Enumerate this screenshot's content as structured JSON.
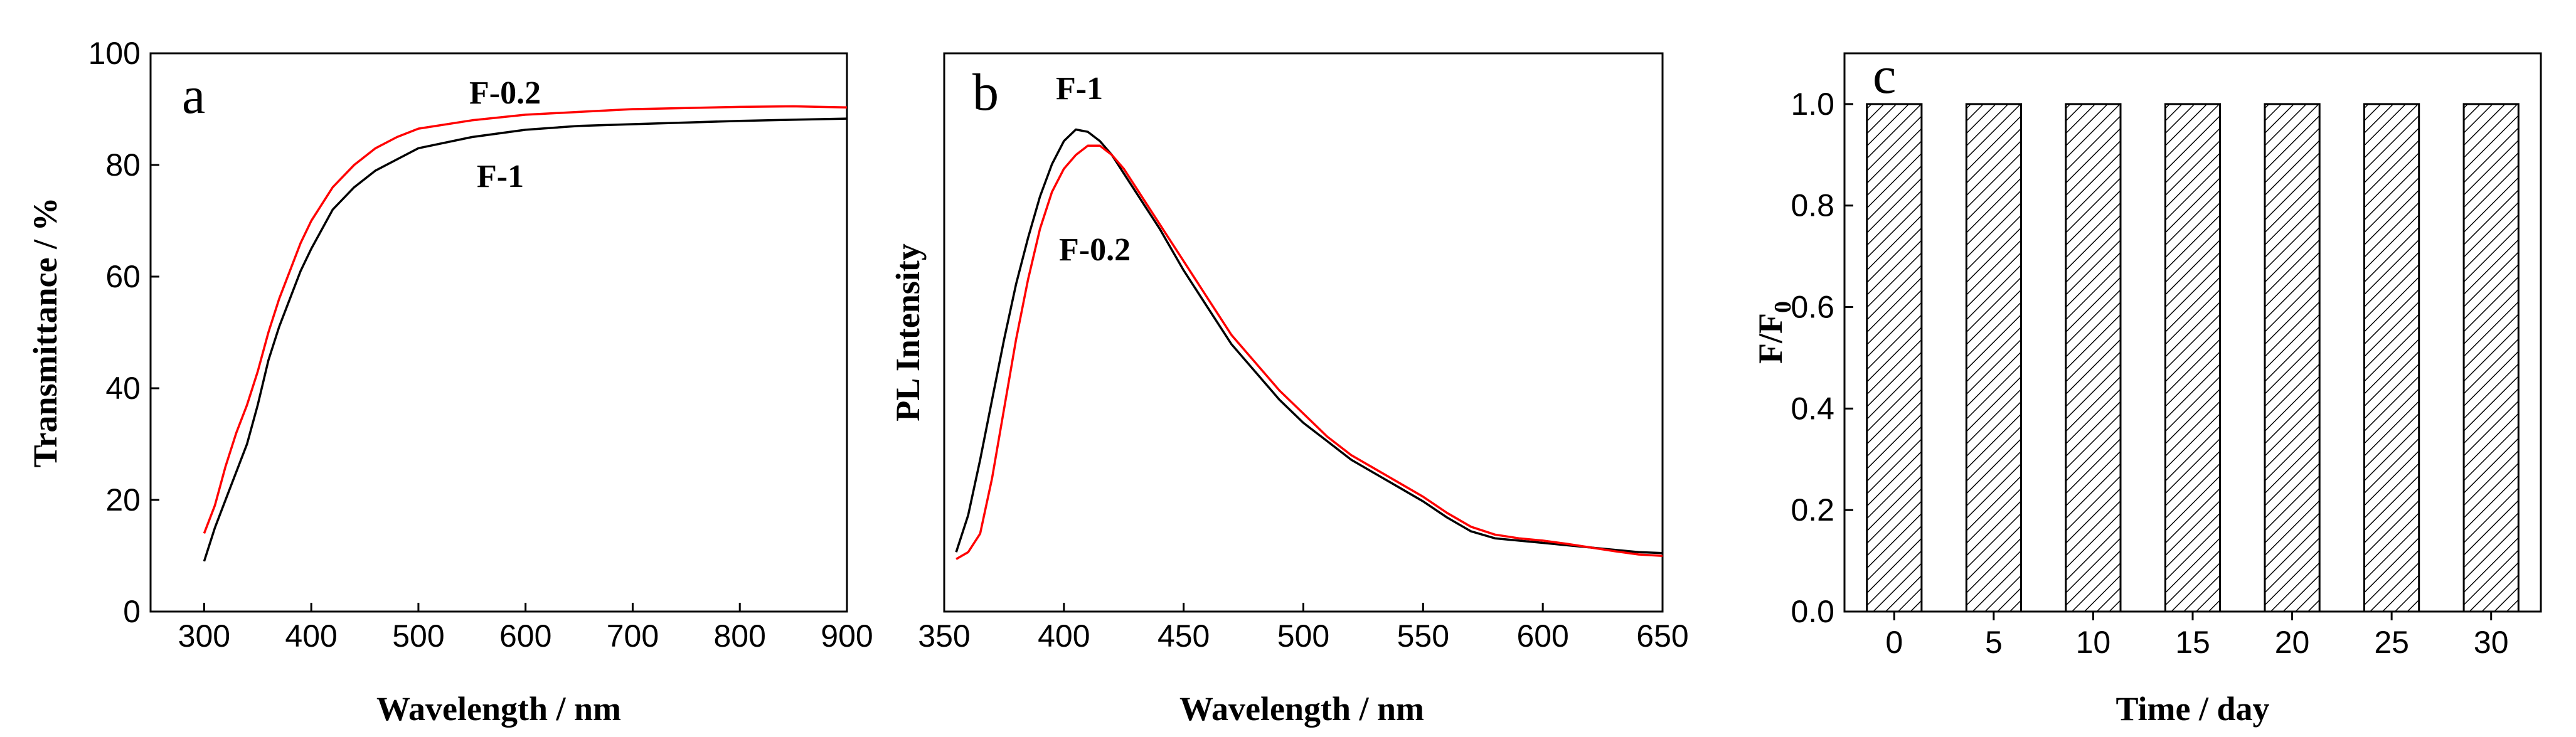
{
  "chart_data": [
    {
      "panel": "a",
      "type": "line",
      "title": "",
      "xlabel": "Wavelength / nm",
      "ylabel": "Transmittance / %",
      "xlim": [
        250,
        900
      ],
      "ylim": [
        0,
        100
      ],
      "xticks": [
        300,
        400,
        500,
        600,
        700,
        800,
        900
      ],
      "yticks": [
        0,
        20,
        40,
        60,
        80,
        100
      ],
      "series": [
        {
          "name": "F-0.2",
          "color": "#ff0000",
          "x": [
            300,
            310,
            320,
            330,
            340,
            350,
            360,
            370,
            380,
            390,
            400,
            420,
            440,
            460,
            480,
            500,
            550,
            600,
            650,
            700,
            750,
            800,
            850,
            900
          ],
          "y": [
            14,
            19,
            26,
            32,
            37,
            43,
            50,
            56,
            61,
            66,
            70,
            76,
            80,
            83,
            85,
            86.5,
            88,
            89,
            89.5,
            90,
            90.2,
            90.4,
            90.5,
            90.3
          ]
        },
        {
          "name": "F-1",
          "color": "#000000",
          "x": [
            300,
            310,
            320,
            330,
            340,
            350,
            360,
            370,
            380,
            390,
            400,
            420,
            440,
            460,
            480,
            500,
            550,
            600,
            650,
            700,
            750,
            800,
            850,
            900
          ],
          "y": [
            9,
            15,
            20,
            25,
            30,
            37,
            45,
            51,
            56,
            61,
            65,
            72,
            76,
            79,
            81,
            83,
            85,
            86.3,
            87,
            87.3,
            87.6,
            87.9,
            88.1,
            88.3
          ]
        }
      ],
      "annotations": [
        "F-0.2",
        "F-1"
      ]
    },
    {
      "panel": "b",
      "type": "line",
      "title": "",
      "xlabel": "Wavelength / nm",
      "ylabel": "PL Intensity",
      "xlim": [
        350,
        650
      ],
      "ylim": [
        0,
        1.1
      ],
      "xticks": [
        350,
        400,
        450,
        500,
        550,
        600,
        650
      ],
      "yticks": [],
      "series": [
        {
          "name": "F-1",
          "color": "#000000",
          "x": [
            355,
            360,
            365,
            370,
            375,
            380,
            385,
            390,
            395,
            400,
            405,
            410,
            415,
            420,
            425,
            430,
            440,
            450,
            460,
            470,
            480,
            490,
            500,
            510,
            520,
            530,
            540,
            550,
            560,
            570,
            580,
            590,
            600,
            610,
            620,
            630,
            640,
            650
          ],
          "y": [
            0.02,
            0.1,
            0.22,
            0.35,
            0.48,
            0.6,
            0.7,
            0.79,
            0.86,
            0.91,
            0.935,
            0.93,
            0.91,
            0.88,
            0.84,
            0.8,
            0.72,
            0.63,
            0.55,
            0.47,
            0.41,
            0.35,
            0.3,
            0.26,
            0.22,
            0.19,
            0.16,
            0.13,
            0.095,
            0.065,
            0.05,
            0.045,
            0.04,
            0.035,
            0.03,
            0.025,
            0.02,
            0.018
          ]
        },
        {
          "name": "F-0.2",
          "color": "#ff0000",
          "x": [
            355,
            360,
            365,
            370,
            375,
            380,
            385,
            390,
            395,
            400,
            405,
            410,
            415,
            420,
            425,
            430,
            440,
            450,
            460,
            470,
            480,
            490,
            500,
            510,
            520,
            530,
            540,
            550,
            560,
            570,
            580,
            590,
            600,
            610,
            620,
            630,
            640,
            650
          ],
          "y": [
            0.005,
            0.02,
            0.06,
            0.18,
            0.33,
            0.48,
            0.61,
            0.72,
            0.8,
            0.85,
            0.88,
            0.9,
            0.9,
            0.88,
            0.85,
            0.81,
            0.73,
            0.65,
            0.57,
            0.49,
            0.43,
            0.37,
            0.32,
            0.27,
            0.23,
            0.2,
            0.17,
            0.14,
            0.105,
            0.075,
            0.058,
            0.05,
            0.045,
            0.038,
            0.03,
            0.022,
            0.015,
            0.012
          ]
        }
      ],
      "annotations": [
        "F-1",
        "F-0.2"
      ]
    },
    {
      "panel": "c",
      "type": "bar",
      "title": "",
      "xlabel": "Time / day",
      "ylabel": "F/F",
      "ylabel_subscript": "0",
      "ylim": [
        0,
        1.1
      ],
      "yticks": [
        "0.0",
        "0.2",
        "0.4",
        "0.6",
        "0.8",
        "1.0"
      ],
      "categories": [
        "0",
        "5",
        "10",
        "15",
        "20",
        "25",
        "30"
      ],
      "values": [
        1.0,
        1.0,
        1.0,
        1.0,
        1.0,
        1.0,
        1.0
      ],
      "bar_fill": "diagonal-hatch"
    }
  ]
}
